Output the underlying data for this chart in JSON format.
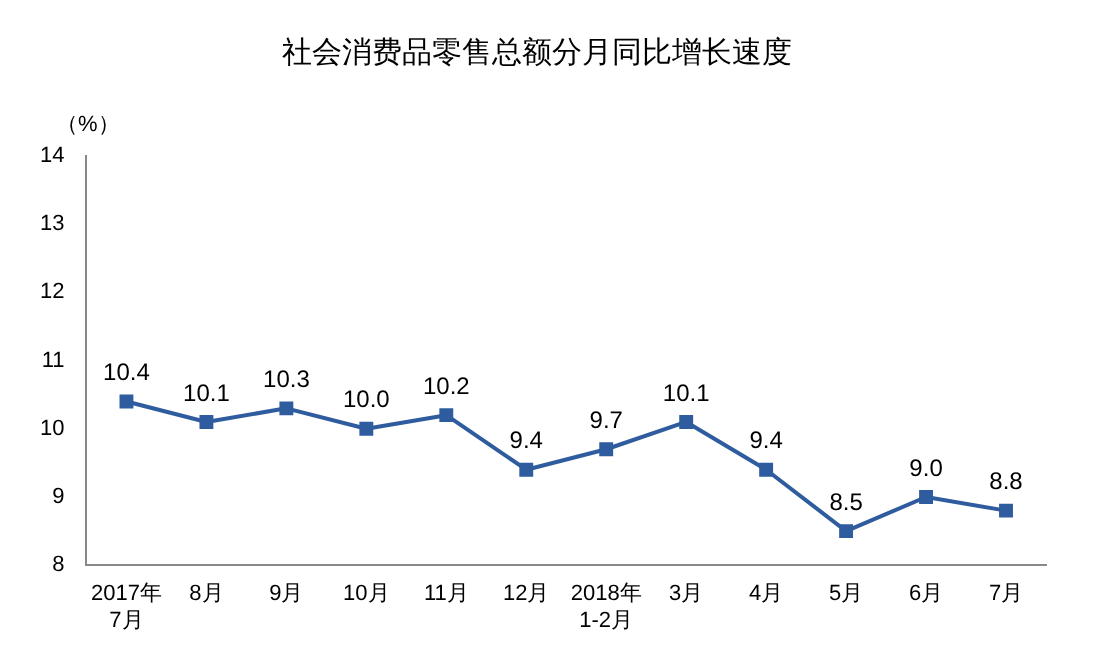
{
  "chart_data": {
    "type": "line",
    "title": "社会消费品零售总额分月同比增长速度",
    "ylabel": "（%）",
    "categories": [
      "2017年\n7月",
      "8月",
      "9月",
      "10月",
      "11月",
      "12月",
      "2018年\n1-2月",
      "3月",
      "4月",
      "5月",
      "6月",
      "7月"
    ],
    "series": [
      {
        "color": "#2e5c9e",
        "values": [
          10.4,
          10.1,
          10.3,
          10.0,
          10.2,
          9.4,
          9.7,
          10.1,
          9.4,
          8.5,
          9.0,
          8.8
        ],
        "value_labels": [
          "10.4",
          "10.1",
          "10.3",
          "10.0",
          "10.2",
          "9.4",
          "9.7",
          "10.1",
          "9.4",
          "8.5",
          "9.0",
          "8.8"
        ]
      }
    ],
    "ylim": [
      8,
      14
    ],
    "yticks": [
      8,
      9,
      10,
      11,
      12,
      13,
      14
    ],
    "grid": false,
    "legend": false,
    "marker": "square",
    "line_style": "solid"
  }
}
